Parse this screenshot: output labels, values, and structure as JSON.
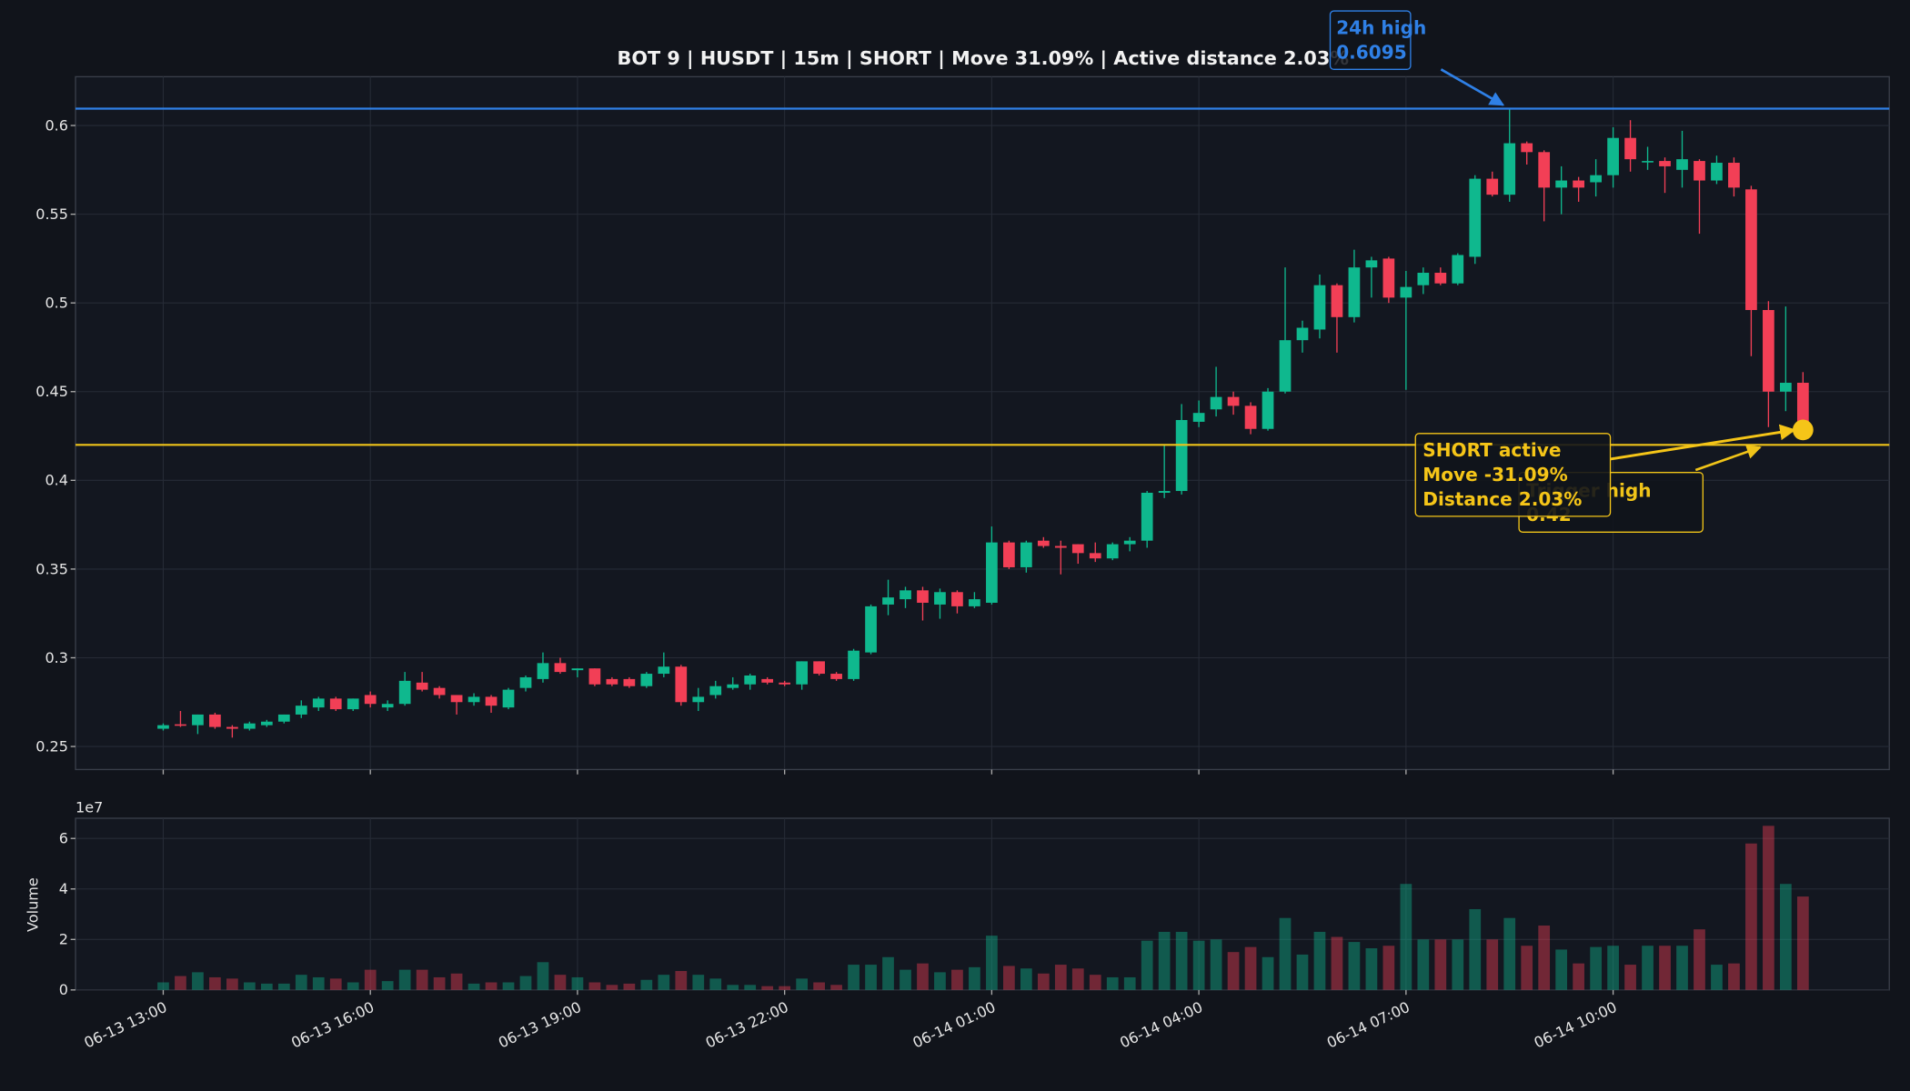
{
  "chart_data": {
    "type": "candlestick",
    "title": "BOT 9 | HUSDT | 15m | SHORT | Move 31.09% | Active distance 2.03%",
    "x": [
      "06-13 13:00",
      "06-13 13:15",
      "06-13 13:30",
      "06-13 13:45",
      "06-13 14:00",
      "06-13 14:15",
      "06-13 14:30",
      "06-13 14:45",
      "06-13 15:00",
      "06-13 15:15",
      "06-13 15:30",
      "06-13 15:45",
      "06-13 16:00",
      "06-13 16:15",
      "06-13 16:30",
      "06-13 16:45",
      "06-13 17:00",
      "06-13 17:15",
      "06-13 17:30",
      "06-13 17:45",
      "06-13 18:00",
      "06-13 18:15",
      "06-13 18:30",
      "06-13 18:45",
      "06-13 19:00",
      "06-13 19:15",
      "06-13 19:30",
      "06-13 19:45",
      "06-13 20:00",
      "06-13 20:15",
      "06-13 20:30",
      "06-13 20:45",
      "06-13 21:00",
      "06-13 21:15",
      "06-13 21:30",
      "06-13 21:45",
      "06-13 22:00",
      "06-13 22:15",
      "06-13 22:30",
      "06-13 22:45",
      "06-13 23:00",
      "06-13 23:15",
      "06-13 23:30",
      "06-13 23:45",
      "06-14 00:00",
      "06-14 00:15",
      "06-14 00:30",
      "06-14 00:45",
      "06-14 01:00",
      "06-14 01:15",
      "06-14 01:30",
      "06-14 01:45",
      "06-14 02:00",
      "06-14 02:15",
      "06-14 02:30",
      "06-14 02:45",
      "06-14 03:00",
      "06-14 03:15",
      "06-14 03:30",
      "06-14 03:45",
      "06-14 04:00",
      "06-14 04:15",
      "06-14 04:30",
      "06-14 04:45",
      "06-14 05:00",
      "06-14 05:15",
      "06-14 05:30",
      "06-14 05:45",
      "06-14 06:00",
      "06-14 06:15",
      "06-14 06:30",
      "06-14 06:45",
      "06-14 07:00",
      "06-14 07:15",
      "06-14 07:30",
      "06-14 07:45",
      "06-14 08:00",
      "06-14 08:15",
      "06-14 08:30",
      "06-14 08:45",
      "06-14 09:00",
      "06-14 09:15",
      "06-14 09:30",
      "06-14 09:45",
      "06-14 10:00",
      "06-14 10:15",
      "06-14 10:30",
      "06-14 10:45",
      "06-14 11:00",
      "06-14 11:15",
      "06-14 11:30",
      "06-14 11:45",
      "06-14 12:00",
      "06-14 12:15",
      "06-14 12:30",
      "06-14 12:45"
    ],
    "xticks": [
      "06-13 13:00",
      "06-13 16:00",
      "06-13 19:00",
      "06-13 22:00",
      "06-14 01:00",
      "06-14 04:00",
      "06-14 07:00",
      "06-14 10:00"
    ],
    "open": [
      0.26,
      0.2625,
      0.262,
      0.268,
      0.261,
      0.26,
      0.262,
      0.264,
      0.268,
      0.272,
      0.277,
      0.271,
      0.279,
      0.272,
      0.274,
      0.286,
      0.283,
      0.279,
      0.275,
      0.278,
      0.272,
      0.283,
      0.288,
      0.297,
      0.293,
      0.294,
      0.288,
      0.288,
      0.284,
      0.291,
      0.295,
      0.275,
      0.279,
      0.283,
      0.285,
      0.288,
      0.286,
      0.285,
      0.298,
      0.291,
      0.288,
      0.303,
      0.33,
      0.333,
      0.338,
      0.33,
      0.337,
      0.329,
      0.331,
      0.365,
      0.351,
      0.366,
      0.363,
      0.364,
      0.359,
      0.356,
      0.364,
      0.366,
      0.393,
      0.394,
      0.433,
      0.44,
      0.447,
      0.442,
      0.429,
      0.45,
      0.479,
      0.485,
      0.51,
      0.492,
      0.52,
      0.525,
      0.503,
      0.51,
      0.517,
      0.511,
      0.526,
      0.57,
      0.561,
      0.59,
      0.585,
      0.565,
      0.569,
      0.568,
      0.572,
      0.593,
      0.58,
      0.58,
      0.575,
      0.58,
      0.569,
      0.579,
      0.564,
      0.496,
      0.45,
      0.455
    ],
    "high": [
      0.263,
      0.27,
      0.268,
      0.269,
      0.262,
      0.264,
      0.265,
      0.268,
      0.276,
      0.278,
      0.278,
      0.277,
      0.281,
      0.276,
      0.292,
      0.292,
      0.284,
      0.279,
      0.28,
      0.279,
      0.283,
      0.29,
      0.303,
      0.3,
      0.294,
      0.294,
      0.289,
      0.289,
      0.292,
      0.303,
      0.296,
      0.283,
      0.287,
      0.289,
      0.291,
      0.289,
      0.287,
      0.298,
      0.298,
      0.292,
      0.305,
      0.33,
      0.344,
      0.34,
      0.34,
      0.339,
      0.338,
      0.337,
      0.374,
      0.366,
      0.366,
      0.368,
      0.366,
      0.364,
      0.365,
      0.365,
      0.368,
      0.394,
      0.42,
      0.443,
      0.445,
      0.464,
      0.45,
      0.444,
      0.452,
      0.52,
      0.49,
      0.516,
      0.511,
      0.53,
      0.526,
      0.526,
      0.518,
      0.52,
      0.52,
      0.528,
      0.572,
      0.574,
      0.609,
      0.591,
      0.586,
      0.577,
      0.571,
      0.581,
      0.599,
      0.603,
      0.588,
      0.582,
      0.597,
      0.581,
      0.583,
      0.582,
      0.566,
      0.501,
      0.498,
      0.461
    ],
    "low": [
      0.259,
      0.261,
      0.257,
      0.26,
      0.255,
      0.259,
      0.261,
      0.263,
      0.266,
      0.27,
      0.27,
      0.27,
      0.272,
      0.27,
      0.273,
      0.281,
      0.277,
      0.268,
      0.273,
      0.269,
      0.271,
      0.281,
      0.286,
      0.291,
      0.289,
      0.284,
      0.284,
      0.283,
      0.283,
      0.289,
      0.273,
      0.27,
      0.277,
      0.282,
      0.282,
      0.285,
      0.284,
      0.282,
      0.29,
      0.287,
      0.287,
      0.302,
      0.324,
      0.328,
      0.321,
      0.322,
      0.325,
      0.328,
      0.33,
      0.35,
      0.348,
      0.362,
      0.347,
      0.353,
      0.354,
      0.355,
      0.36,
      0.362,
      0.39,
      0.392,
      0.43,
      0.436,
      0.437,
      0.426,
      0.428,
      0.449,
      0.472,
      0.48,
      0.472,
      0.489,
      0.503,
      0.5,
      0.451,
      0.505,
      0.51,
      0.51,
      0.522,
      0.56,
      0.557,
      0.578,
      0.546,
      0.55,
      0.557,
      0.56,
      0.565,
      0.574,
      0.575,
      0.562,
      0.565,
      0.539,
      0.567,
      0.56,
      0.47,
      0.43,
      0.439,
      0.427
    ],
    "close": [
      0.262,
      0.262,
      0.268,
      0.261,
      0.26,
      0.263,
      0.264,
      0.268,
      0.273,
      0.277,
      0.271,
      0.277,
      0.274,
      0.274,
      0.287,
      0.282,
      0.279,
      0.275,
      0.278,
      0.273,
      0.282,
      0.289,
      0.297,
      0.292,
      0.294,
      0.285,
      0.285,
      0.284,
      0.291,
      0.295,
      0.275,
      0.278,
      0.284,
      0.285,
      0.29,
      0.286,
      0.285,
      0.298,
      0.291,
      0.288,
      0.304,
      0.329,
      0.334,
      0.338,
      0.331,
      0.337,
      0.329,
      0.333,
      0.365,
      0.351,
      0.365,
      0.363,
      0.362,
      0.359,
      0.356,
      0.364,
      0.366,
      0.393,
      0.394,
      0.434,
      0.438,
      0.447,
      0.442,
      0.429,
      0.45,
      0.479,
      0.486,
      0.51,
      0.492,
      0.52,
      0.524,
      0.503,
      0.509,
      0.517,
      0.511,
      0.527,
      0.57,
      0.561,
      0.59,
      0.585,
      0.565,
      0.569,
      0.565,
      0.572,
      0.593,
      0.581,
      0.58,
      0.577,
      0.581,
      0.569,
      0.579,
      0.565,
      0.496,
      0.45,
      0.455,
      0.43
    ],
    "up_color": "#0fb88e",
    "down_color": "#f23f56",
    "ylim": [
      0.237,
      0.6275
    ],
    "yticks": [
      0.25,
      0.3,
      0.35,
      0.4,
      0.45,
      0.5,
      0.55,
      0.6
    ],
    "grid": true,
    "hlines": [
      {
        "name": "24h high",
        "value": 0.6095,
        "color": "#2f80e6"
      },
      {
        "name": "Trigger high",
        "value": 0.42,
        "color": "#f0c419"
      }
    ],
    "marker": {
      "value": 0.4284,
      "color": "#f5c518",
      "annotation": [
        "SHORT active",
        "Move -31.09%",
        "Distance 2.03%"
      ]
    },
    "volume": {
      "ylabel": "Volume",
      "offset_label": "1e7",
      "values": [
        3000000,
        5500000,
        7000000,
        5000000,
        4500000,
        3000000,
        2500000,
        2500000,
        6000000,
        5000000,
        4500000,
        3000000,
        8000000,
        3500000,
        8000000,
        8000000,
        5000000,
        6500000,
        2500000,
        3000000,
        3000000,
        5500000,
        11000000,
        6000000,
        5000000,
        3000000,
        2000000,
        2500000,
        4000000,
        6000000,
        7500000,
        6000000,
        4500000,
        2000000,
        2000000,
        1500000,
        1500000,
        4500000,
        3000000,
        2000000,
        10000000,
        10000000,
        13000000,
        8000000,
        10500000,
        7000000,
        8000000,
        9000000,
        21500000,
        9500000,
        8500000,
        6500000,
        10000000,
        8500000,
        6000000,
        5000000,
        5000000,
        19500000,
        23000000,
        23000000,
        19500000,
        20000000,
        15000000,
        17000000,
        13000000,
        28500000,
        14000000,
        23000000,
        21000000,
        19000000,
        16500000,
        17500000,
        42000000,
        20000000,
        20000000,
        20000000,
        32000000,
        20000000,
        28500000,
        17500000,
        25500000,
        16000000,
        10500000,
        17000000,
        17500000,
        10000000,
        17500000,
        17500000,
        17500000,
        24000000,
        10000000,
        10500000,
        58000000,
        65000000,
        42000000,
        37000000
      ],
      "ylim": [
        0,
        68000000
      ],
      "yticks": [
        0,
        {
          "value": 20000000,
          "label": "2"
        },
        {
          "value": 40000000,
          "label": "4"
        },
        {
          "value": 60000000,
          "label": "6"
        }
      ]
    }
  }
}
